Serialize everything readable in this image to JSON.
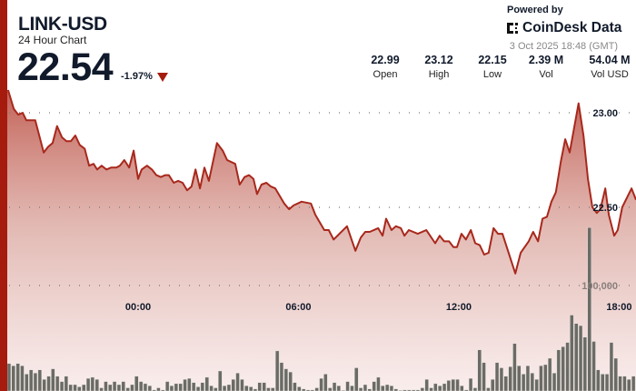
{
  "header": {
    "title": "LINK-USD",
    "subtitle": "24 Hour Chart",
    "price": "22.54",
    "change": "-1.97%",
    "change_direction": "down",
    "stats": [
      {
        "value": "22.99",
        "label": "Open"
      },
      {
        "value": "23.12",
        "label": "High"
      },
      {
        "value": "22.15",
        "label": "Low"
      },
      {
        "value": "2.39 M",
        "label": "Vol"
      },
      {
        "value": "54.04 M",
        "label": "Vol USD"
      }
    ],
    "powered_by": "Powered by",
    "brand": "CoinDesk Data",
    "timestamp": "3 Oct 2025 18:48 (GMT)"
  },
  "colors": {
    "accent": "#a51c0f",
    "line": "#a8281c",
    "volume": "#6b6b66"
  },
  "chart_data": {
    "type": "area",
    "x_ticks": [
      "00:00",
      "06:00",
      "12:00",
      "18:00"
    ],
    "y_ticks": [
      "23.00",
      "22.50"
    ],
    "y_tick_values": [
      23.0,
      22.5
    ],
    "volume_ticks": [
      "100,000"
    ],
    "volume_tick_values": [
      100000
    ],
    "grid": true,
    "price": [
      [
        "19:08",
        23.12
      ],
      [
        "19:21",
        23.02
      ],
      [
        "19:31",
        22.99
      ],
      [
        "19:41",
        23.0
      ],
      [
        "19:49",
        22.96
      ],
      [
        "19:57",
        22.96
      ],
      [
        "20:09",
        22.96
      ],
      [
        "20:28",
        22.79
      ],
      [
        "20:38",
        22.82
      ],
      [
        "20:48",
        22.84
      ],
      [
        "20:58",
        22.93
      ],
      [
        "21:09",
        22.87
      ],
      [
        "21:19",
        22.85
      ],
      [
        "21:29",
        22.85
      ],
      [
        "21:39",
        22.88
      ],
      [
        "21:49",
        22.83
      ],
      [
        "22:00",
        22.81
      ],
      [
        "22:10",
        22.72
      ],
      [
        "22:20",
        22.73
      ],
      [
        "22:28",
        22.7
      ],
      [
        "22:38",
        22.72
      ],
      [
        "22:49",
        22.7
      ],
      [
        "22:59",
        22.71
      ],
      [
        "23:11",
        22.71
      ],
      [
        "23:19",
        22.72
      ],
      [
        "23:29",
        22.75
      ],
      [
        "23:40",
        22.71
      ],
      [
        "23:50",
        22.8
      ],
      [
        "00:00",
        22.65
      ],
      [
        "00:08",
        22.7
      ],
      [
        "00:20",
        22.72
      ],
      [
        "00:31",
        22.7
      ],
      [
        "00:41",
        22.67
      ],
      [
        "00:51",
        22.66
      ],
      [
        "01:01",
        22.67
      ],
      [
        "01:09",
        22.67
      ],
      [
        "01:20",
        22.63
      ],
      [
        "01:30",
        22.64
      ],
      [
        "01:40",
        22.63
      ],
      [
        "01:50",
        22.59
      ],
      [
        "02:00",
        22.61
      ],
      [
        "02:09",
        22.7
      ],
      [
        "02:19",
        22.6
      ],
      [
        "02:29",
        22.71
      ],
      [
        "02:39",
        22.64
      ],
      [
        "02:57",
        22.84
      ],
      [
        "03:10",
        22.8
      ],
      [
        "03:20",
        22.75
      ],
      [
        "03:38",
        22.73
      ],
      [
        "03:48",
        22.62
      ],
      [
        "03:59",
        22.66
      ],
      [
        "04:09",
        22.67
      ],
      [
        "04:19",
        22.65
      ],
      [
        "04:27",
        22.57
      ],
      [
        "04:37",
        22.62
      ],
      [
        "04:48",
        22.63
      ],
      [
        "04:58",
        22.61
      ],
      [
        "05:08",
        22.6
      ],
      [
        "05:28",
        22.52
      ],
      [
        "05:39",
        22.49
      ],
      [
        "05:49",
        22.51
      ],
      [
        "06:07",
        22.53
      ],
      [
        "06:28",
        22.52
      ],
      [
        "06:38",
        22.46
      ],
      [
        "06:58",
        22.38
      ],
      [
        "07:08",
        22.38
      ],
      [
        "07:19",
        22.33
      ],
      [
        "07:49",
        22.4
      ],
      [
        "08:08",
        22.27
      ],
      [
        "08:20",
        22.34
      ],
      [
        "08:30",
        22.37
      ],
      [
        "08:40",
        22.37
      ],
      [
        "08:59",
        22.39
      ],
      [
        "09:09",
        22.35
      ],
      [
        "09:17",
        22.44
      ],
      [
        "09:29",
        22.38
      ],
      [
        "09:39",
        22.4
      ],
      [
        "09:50",
        22.39
      ],
      [
        "09:58",
        22.35
      ],
      [
        "10:08",
        22.38
      ],
      [
        "10:28",
        22.36
      ],
      [
        "10:47",
        22.38
      ],
      [
        "11:07",
        22.31
      ],
      [
        "11:17",
        22.35
      ],
      [
        "11:27",
        22.32
      ],
      [
        "11:38",
        22.32
      ],
      [
        "11:48",
        22.29
      ],
      [
        "11:56",
        22.29
      ],
      [
        "12:06",
        22.36
      ],
      [
        "12:16",
        22.33
      ],
      [
        "12:27",
        22.38
      ],
      [
        "12:37",
        22.31
      ],
      [
        "12:47",
        22.3
      ],
      [
        "12:57",
        22.25
      ],
      [
        "13:07",
        22.26
      ],
      [
        "13:18",
        22.39
      ],
      [
        "13:28",
        22.36
      ],
      [
        "13:38",
        22.36
      ],
      [
        "14:07",
        22.15
      ],
      [
        "14:19",
        22.26
      ],
      [
        "14:37",
        22.32
      ],
      [
        "14:47",
        22.37
      ],
      [
        "14:58",
        22.32
      ],
      [
        "15:08",
        22.44
      ],
      [
        "15:18",
        22.45
      ],
      [
        "15:28",
        22.53
      ],
      [
        "15:38",
        22.58
      ],
      [
        "15:49",
        22.74
      ],
      [
        "15:59",
        22.86
      ],
      [
        "16:09",
        22.79
      ],
      [
        "16:29",
        23.05
      ],
      [
        "16:40",
        22.88
      ],
      [
        "16:50",
        22.65
      ],
      [
        "17:00",
        22.5
      ],
      [
        "17:10",
        22.47
      ],
      [
        "17:18",
        22.49
      ],
      [
        "17:29",
        22.6
      ],
      [
        "17:37",
        22.46
      ],
      [
        "17:49",
        22.35
      ],
      [
        "17:57",
        22.38
      ],
      [
        "18:07",
        22.5
      ],
      [
        "18:28",
        22.6
      ],
      [
        "18:38",
        22.54
      ]
    ],
    "volume": [
      26000,
      24000,
      26000,
      24000,
      16000,
      20000,
      17000,
      20000,
      11000,
      14000,
      21000,
      14000,
      9000,
      14000,
      6000,
      6000,
      4000,
      6000,
      12000,
      13000,
      11000,
      3000,
      9000,
      6000,
      9000,
      6000,
      9000,
      3000,
      6000,
      14000,
      9000,
      7000,
      5000,
      1000,
      3000,
      1000,
      9000,
      5000,
      7000,
      7000,
      11000,
      12000,
      8000,
      4000,
      8000,
      13000,
      5000,
      3000,
      19000,
      5000,
      6000,
      11000,
      17000,
      11000,
      5000,
      4000,
      2000,
      8000,
      8000,
      3000,
      3000,
      38000,
      27000,
      21000,
      18000,
      8000,
      4000,
      2000,
      1000,
      1000,
      3000,
      12000,
      16000,
      3000,
      8000,
      5000,
      0,
      9000,
      5000,
      22000,
      3000,
      6000,
      2000,
      9000,
      13000,
      5000,
      6000,
      5000,
      2000,
      0,
      1000,
      1000,
      1000,
      1000,
      3000,
      11000,
      3000,
      7000,
      5000,
      7000,
      10000,
      11000,
      11000,
      5000,
      1000,
      12000,
      3000,
      39000,
      27000,
      3000,
      11000,
      27000,
      22000,
      14000,
      23000,
      45000,
      24000,
      16000,
      24000,
      17000,
      11000,
      24000,
      25000,
      31000,
      17000,
      39000,
      42000,
      46000,
      72000,
      64000,
      62000,
      51000,
      155000,
      47000,
      20000,
      16000,
      16000,
      46000,
      31000,
      14000,
      14000,
      11000,
      14000
    ]
  }
}
